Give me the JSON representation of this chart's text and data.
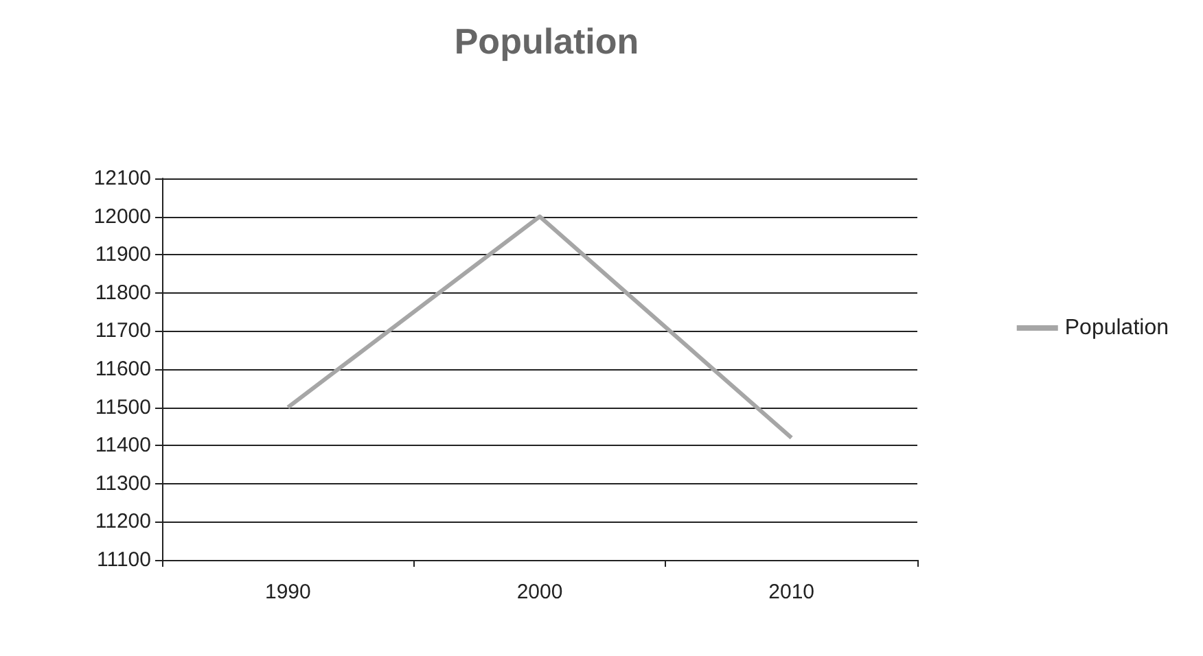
{
  "chart_data": {
    "type": "line",
    "title": "Population",
    "categories": [
      "1990",
      "2000",
      "2010"
    ],
    "series": [
      {
        "name": "Population",
        "color": "#a6a6a6",
        "values": [
          11500,
          12000,
          11420
        ]
      }
    ],
    "ylim": [
      11100,
      12100
    ],
    "yticks": [
      11100,
      11200,
      11300,
      11400,
      11500,
      11600,
      11700,
      11800,
      11900,
      12000,
      12100
    ],
    "grid": "y",
    "legend": "right",
    "marker": "none",
    "line_style": "solid"
  }
}
